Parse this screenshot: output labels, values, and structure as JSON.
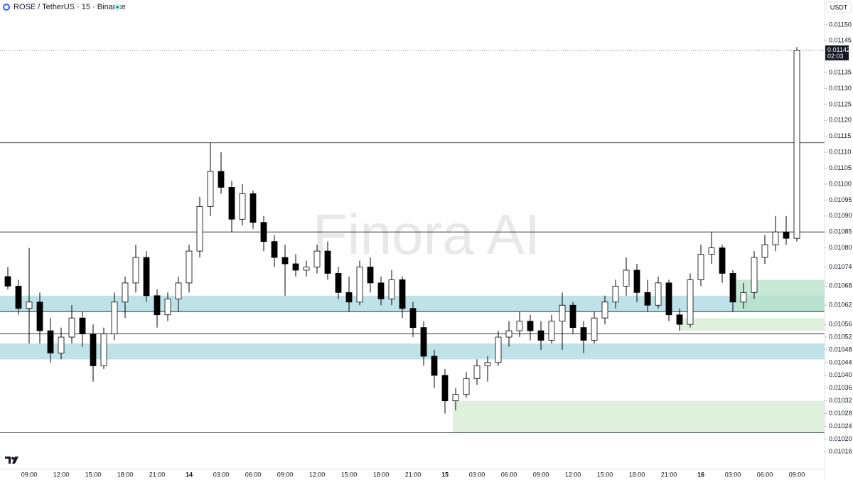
{
  "chart_data": {
    "type": "candlestick",
    "title": "ROSE / TetherUS · 15 · Binance",
    "currency": "USDT",
    "watermark": "Finora AI",
    "last_price": 0.01142,
    "countdown": "02:03",
    "up_color": "#ffffff",
    "down_color": "#000000",
    "outline_color": "#000000",
    "categories": [
      null,
      null,
      "09:00",
      null,
      null,
      "12:00",
      null,
      null,
      "15:00",
      null,
      null,
      "18:00",
      null,
      null,
      "21:00",
      null,
      null,
      "14",
      null,
      null,
      "03:00",
      null,
      null,
      "06:00",
      null,
      null,
      "09:00",
      null,
      null,
      "12:00",
      null,
      null,
      "15:00",
      null,
      null,
      "18:00",
      null,
      null,
      "21:00",
      null,
      null,
      "15",
      null,
      null,
      "03:00",
      null,
      null,
      "06:00",
      null,
      null,
      "09:00",
      null,
      null,
      "12:00",
      null,
      null,
      "15:00",
      null,
      null,
      "18:00",
      null,
      null,
      "21:00",
      null,
      null,
      "16",
      null,
      null,
      "03:00",
      null,
      null,
      "06:00",
      null,
      null,
      "09:00"
    ],
    "open": [
      0.01071,
      0.01068,
      0.01061,
      0.01063,
      0.01054,
      0.01047,
      0.01052,
      0.01058,
      0.01053,
      0.01043,
      0.01053,
      0.01063,
      0.01069,
      0.01077,
      0.01065,
      0.01059,
      0.01064,
      0.01069,
      0.01079,
      0.01093,
      0.01104,
      0.01099,
      0.01089,
      0.01097,
      0.01088,
      0.01082,
      0.01077,
      0.01075,
      0.01073,
      0.01074,
      0.01079,
      0.01072,
      0.01066,
      0.01063,
      0.01074,
      0.01069,
      0.01064,
      0.0107,
      0.01061,
      0.01055,
      0.01046,
      0.0104,
      0.01032,
      0.01034,
      0.01039,
      0.01043,
      0.01044,
      0.01052,
      0.01054,
      0.01057,
      0.01054,
      0.01051,
      0.01057,
      0.01062,
      0.01055,
      0.01051,
      0.01058,
      0.01063,
      0.01068,
      0.01073,
      0.01066,
      0.01062,
      0.01069,
      0.01059,
      0.01056,
      0.0107,
      0.01078,
      0.0108,
      0.01072,
      0.01063,
      0.01066,
      0.01077,
      0.01081,
      0.01085,
      0.01083
    ],
    "high": [
      0.01074,
      0.0107,
      0.0108,
      0.01066,
      0.01058,
      0.01055,
      0.01062,
      0.0106,
      0.01056,
      0.01055,
      0.01066,
      0.01071,
      0.01081,
      0.01079,
      0.01067,
      0.01066,
      0.01071,
      0.01081,
      0.01096,
      0.01113,
      0.0111,
      0.01101,
      0.011,
      0.01098,
      0.0109,
      0.01084,
      0.01081,
      0.01078,
      0.01076,
      0.01081,
      0.01082,
      0.01074,
      0.01071,
      0.01076,
      0.01077,
      0.01071,
      0.01073,
      0.01071,
      0.01063,
      0.01057,
      0.01048,
      0.01042,
      0.01036,
      0.01041,
      0.01045,
      0.01046,
      0.01054,
      0.01057,
      0.0106,
      0.01059,
      0.01057,
      0.01059,
      0.01066,
      0.01063,
      0.01057,
      0.0106,
      0.01065,
      0.0107,
      0.01077,
      0.01075,
      0.0107,
      0.01071,
      0.0107,
      0.01061,
      0.01072,
      0.01081,
      0.01085,
      0.01081,
      0.01073,
      0.01069,
      0.01079,
      0.01084,
      0.0109,
      0.0109,
      0.01143
    ],
    "low": [
      0.01067,
      0.01059,
      0.0105,
      0.0105,
      0.01044,
      0.01045,
      0.0105,
      0.01049,
      0.01038,
      0.01042,
      0.01051,
      0.01058,
      0.01066,
      0.01063,
      0.01055,
      0.01057,
      0.0106,
      0.01066,
      0.01077,
      0.0109,
      0.01097,
      0.01085,
      0.01087,
      0.01086,
      0.01079,
      0.01074,
      0.01065,
      0.01071,
      0.01071,
      0.01072,
      0.0107,
      0.01064,
      0.0106,
      0.01062,
      0.01066,
      0.01062,
      0.01062,
      0.01058,
      0.01052,
      0.01043,
      0.01036,
      0.01028,
      0.01029,
      0.01033,
      0.01037,
      0.01038,
      0.01043,
      0.01049,
      0.01052,
      0.01051,
      0.01048,
      0.0105,
      0.01048,
      0.01053,
      0.01047,
      0.0105,
      0.01056,
      0.01061,
      0.01065,
      0.01063,
      0.0106,
      0.01061,
      0.01057,
      0.01054,
      0.01055,
      0.01068,
      0.01075,
      0.01069,
      0.0106,
      0.01061,
      0.01064,
      0.01075,
      0.01079,
      0.01081,
      0.01082
    ],
    "close": [
      0.01068,
      0.01061,
      0.01063,
      0.01054,
      0.01047,
      0.01052,
      0.01058,
      0.01053,
      0.01043,
      0.01053,
      0.01063,
      0.01069,
      0.01077,
      0.01065,
      0.01059,
      0.01064,
      0.01069,
      0.01079,
      0.01093,
      0.01104,
      0.01099,
      0.01089,
      0.01097,
      0.01088,
      0.01082,
      0.01077,
      0.01075,
      0.01073,
      0.01074,
      0.01079,
      0.01072,
      0.01066,
      0.01063,
      0.01074,
      0.01069,
      0.01064,
      0.0107,
      0.01061,
      0.01055,
      0.01046,
      0.0104,
      0.01032,
      0.01034,
      0.01039,
      0.01043,
      0.01044,
      0.01052,
      0.01054,
      0.01057,
      0.01054,
      0.01051,
      0.01057,
      0.01062,
      0.01055,
      0.01051,
      0.01058,
      0.01063,
      0.01068,
      0.01073,
      0.01066,
      0.01062,
      0.01069,
      0.01059,
      0.01056,
      0.0107,
      0.01078,
      0.0108,
      0.01072,
      0.01063,
      0.01066,
      0.01077,
      0.01081,
      0.01085,
      0.01083,
      0.01142
    ],
    "levels": [
      0.01113,
      0.01085,
      0.0106,
      0.01053,
      0.01022
    ],
    "zones": [
      {
        "low": 0.0106,
        "high": 0.01065,
        "color": "#a8d8e0"
      },
      {
        "low": 0.01045,
        "high": 0.0105,
        "color": "#a8d8e0"
      },
      {
        "low": 0.01022,
        "high": 0.01032,
        "color": "#d4ecd2"
      },
      {
        "low": 0.01054,
        "high": 0.01058,
        "color": "#d4ecd2"
      },
      {
        "low": 0.0106,
        "high": 0.0107,
        "color": "#b6e0c8"
      }
    ],
    "ylim": [
      0.010105,
      0.011578
    ],
    "yticks": [
      {
        "value": 0.0115,
        "label": "0.01150"
      },
      0.01145,
      0.01135,
      {
        "value": 0.0113,
        "label": "0.01130"
      },
      0.01125,
      {
        "value": 0.0112,
        "label": "0.01120"
      },
      0.01115,
      {
        "value": 0.0111,
        "label": "0.01110"
      },
      0.01105,
      {
        "value": 0.011,
        "label": "0.01100"
      },
      0.01095,
      {
        "value": 0.0109,
        "label": "0.01090"
      },
      0.01085,
      {
        "value": 0.0108,
        "label": "0.01080"
      },
      0.01074,
      0.01068,
      0.01062,
      0.01056,
      0.01052,
      0.01048,
      0.01044,
      {
        "value": 0.0104,
        "label": "0.01040"
      },
      0.01036,
      0.01032,
      0.01028,
      0.01024,
      {
        "value": 0.0102,
        "label": "0.01020"
      },
      0.01016
    ]
  }
}
